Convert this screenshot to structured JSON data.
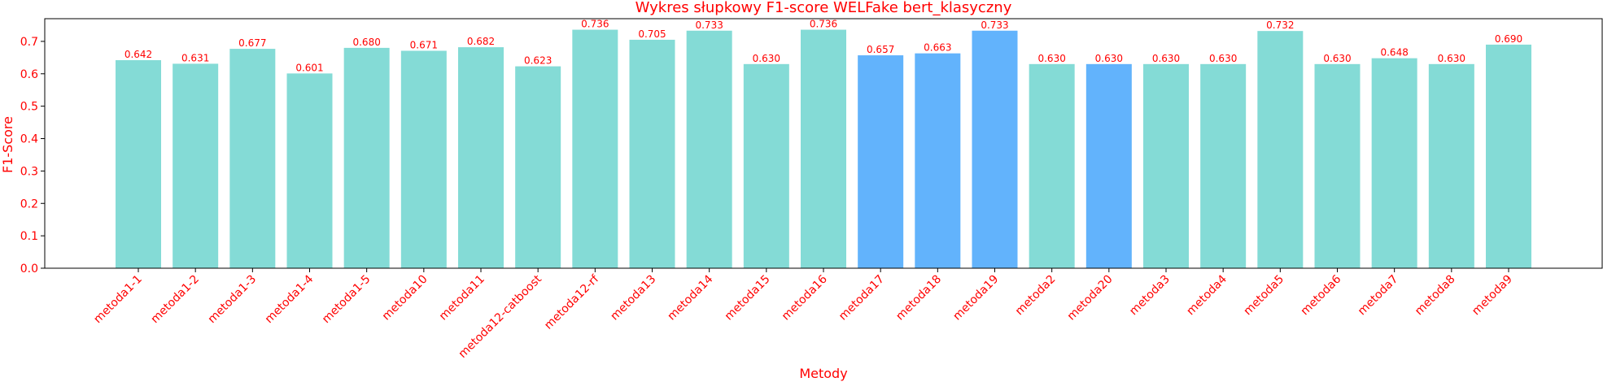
{
  "chart_data": {
    "type": "bar",
    "title": "Wykres słupkowy F1-score WELFake bert_klasyczny",
    "xlabel": "Metody",
    "ylabel": "F1-Score",
    "ylim": [
      0,
      0.77
    ],
    "yticks": [
      0.0,
      0.1,
      0.2,
      0.3,
      0.4,
      0.5,
      0.6,
      0.7
    ],
    "grid": false,
    "colors": {
      "default": "#84dbd6",
      "highlight": "#62b3fc",
      "text": "#ff0000",
      "axis": "#000000"
    },
    "categories": [
      "metoda1-1",
      "metoda1-2",
      "metoda1-3",
      "metoda1-4",
      "metoda1-5",
      "metoda10",
      "metoda11",
      "metoda12-catboost",
      "metoda12-rf",
      "metoda13",
      "metoda14",
      "metoda15",
      "metoda16",
      "metoda17",
      "metoda18",
      "metoda19",
      "metoda2",
      "metoda20",
      "metoda3",
      "metoda4",
      "metoda5",
      "metoda6",
      "metoda7",
      "metoda8",
      "metoda9"
    ],
    "values": [
      0.642,
      0.631,
      0.677,
      0.601,
      0.68,
      0.671,
      0.682,
      0.623,
      0.736,
      0.705,
      0.733,
      0.63,
      0.736,
      0.657,
      0.663,
      0.733,
      0.63,
      0.63,
      0.63,
      0.63,
      0.732,
      0.63,
      0.648,
      0.63,
      0.69
    ],
    "value_labels": [
      "0.642",
      "0.631",
      "0.677",
      "0.601",
      "0.680",
      "0.671",
      "0.682",
      "0.623",
      "0.736",
      "0.705",
      "0.733",
      "0.630",
      "0.736",
      "0.657",
      "0.663",
      "0.733",
      "0.630",
      "0.630",
      "0.630",
      "0.630",
      "0.732",
      "0.630",
      "0.648",
      "0.630",
      "0.690"
    ],
    "highlighted": [
      "metoda17",
      "metoda18",
      "metoda19",
      "metoda20"
    ]
  }
}
